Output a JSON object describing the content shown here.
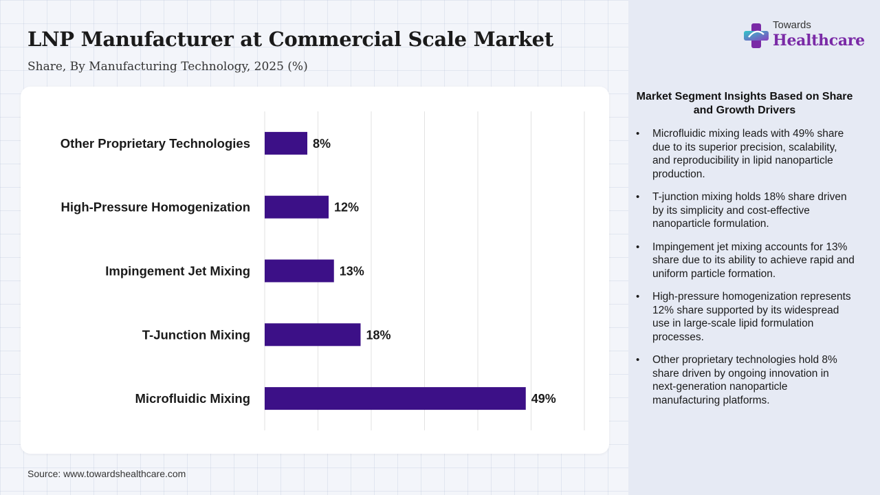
{
  "title": "LNP Manufacturer at Commercial Scale Market",
  "subtitle": "Share, By Manufacturing Technology, 2025 (%)",
  "source": "Source: www.towardshealthcare.com",
  "logo": {
    "top": "Towards",
    "main": "Healthcare"
  },
  "colors": {
    "bar": "#3c1087",
    "accent": "#7a2aa6",
    "panel": "#e6eaf4"
  },
  "chart_data": {
    "type": "bar",
    "orientation": "horizontal",
    "categories": [
      "Other Proprietary Technologies",
      "High-Pressure Homogenization",
      "Impingement Jet Mixing",
      "T-Junction Mixing",
      "Microfluidic Mixing"
    ],
    "values": [
      8,
      12,
      13,
      18,
      49
    ],
    "value_labels": [
      "8%",
      "12%",
      "13%",
      "18%",
      "49%"
    ],
    "title": "",
    "xlabel": "",
    "ylabel": "",
    "xlim": [
      0,
      60
    ],
    "grid": "vertical",
    "legend": "none"
  },
  "insights": {
    "heading": "Market Segment Insights Based on Share and Growth Drivers",
    "items": [
      "Microfluidic mixing leads with 49% share due to its superior precision, scalability, and reproducibility in lipid nanoparticle production.",
      "T-junction mixing holds 18% share driven by its simplicity and cost-effective nanoparticle formulation.",
      "Impingement jet mixing accounts for 13% share due to its ability to achieve rapid and uniform particle formation.",
      "High-pressure homogenization represents 12% share supported by its widespread use in large-scale lipid formulation processes.",
      "Other proprietary technologies hold 8% share driven by ongoing innovation in next-generation nanoparticle manufacturing platforms."
    ]
  }
}
